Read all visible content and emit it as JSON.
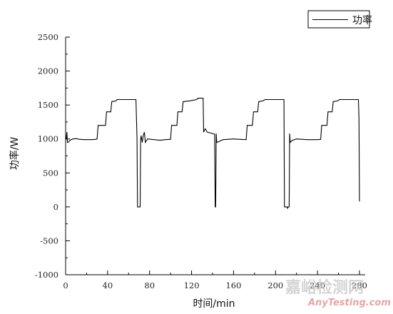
{
  "chart_data": {
    "type": "line",
    "xlabel": "时间/min",
    "ylabel": "功率/W",
    "xlim": [
      0,
      290
    ],
    "ylim": [
      -1000,
      2500
    ],
    "xticks": [
      0,
      40,
      80,
      120,
      160,
      200,
      240,
      280
    ],
    "yticks": [
      -1000,
      -500,
      0,
      500,
      1000,
      1500,
      2000,
      2500
    ],
    "legend_position": "top-right",
    "grid": false,
    "line_color": "#000000",
    "series": [
      {
        "name": "功率",
        "points": [
          [
            0,
            1000
          ],
          [
            0.6,
            1000
          ],
          [
            1.2,
            1100
          ],
          [
            1.7,
            950
          ],
          [
            2.5,
            950
          ],
          [
            4,
            980
          ],
          [
            7,
            1000
          ],
          [
            10,
            1005
          ],
          [
            13,
            995
          ],
          [
            18,
            990
          ],
          [
            25,
            990
          ],
          [
            29,
            995
          ],
          [
            30,
            1000
          ],
          [
            31,
            1200
          ],
          [
            38,
            1200
          ],
          [
            39,
            1400
          ],
          [
            43,
            1400
          ],
          [
            44,
            1550
          ],
          [
            48,
            1560
          ],
          [
            49,
            1580
          ],
          [
            67,
            1580
          ],
          [
            68,
            1000
          ],
          [
            68.5,
            0
          ],
          [
            71,
            0
          ],
          [
            71.5,
            1000
          ],
          [
            72,
            1050
          ],
          [
            73,
            950
          ],
          [
            74,
            1050
          ],
          [
            75,
            1100
          ],
          [
            76,
            950
          ],
          [
            78,
            1000
          ],
          [
            90,
            980
          ],
          [
            95,
            990
          ],
          [
            100,
            995
          ],
          [
            101,
            1200
          ],
          [
            106,
            1200
          ],
          [
            107,
            1400
          ],
          [
            111,
            1400
          ],
          [
            112,
            1550
          ],
          [
            118,
            1560
          ],
          [
            125,
            1580
          ],
          [
            126,
            1600
          ],
          [
            131,
            1600
          ],
          [
            131.5,
            1100
          ],
          [
            133,
            1150
          ],
          [
            135,
            1100
          ],
          [
            140,
            1080
          ],
          [
            142,
            1070
          ],
          [
            142.5,
            0
          ],
          [
            143,
            0
          ],
          [
            143.5,
            1080
          ],
          [
            144,
            950
          ],
          [
            146,
            960
          ],
          [
            150,
            990
          ],
          [
            160,
            1000
          ],
          [
            165,
            995
          ],
          [
            172,
            990
          ],
          [
            173,
            1200
          ],
          [
            178,
            1200
          ],
          [
            179,
            1400
          ],
          [
            183,
            1400
          ],
          [
            184,
            1550
          ],
          [
            188,
            1560
          ],
          [
            190,
            1580
          ],
          [
            208,
            1580
          ],
          [
            208.5,
            0
          ],
          [
            211,
            0
          ],
          [
            211.5,
            -20
          ],
          [
            212,
            0
          ],
          [
            213,
            0
          ],
          [
            213.5,
            1080
          ],
          [
            214,
            950
          ],
          [
            216,
            980
          ],
          [
            220,
            1000
          ],
          [
            230,
            990
          ],
          [
            240,
            990
          ],
          [
            243,
            995
          ],
          [
            244,
            1200
          ],
          [
            249,
            1200
          ],
          [
            250,
            1400
          ],
          [
            254,
            1400
          ],
          [
            255,
            1550
          ],
          [
            259,
            1560
          ],
          [
            261,
            1580
          ],
          [
            279,
            1580
          ],
          [
            279.5,
            1300
          ],
          [
            280,
            80
          ]
        ]
      }
    ]
  },
  "watermark": {
    "main_text": "嘉峪检测网",
    "sub_text": "AnyTesting.com"
  }
}
